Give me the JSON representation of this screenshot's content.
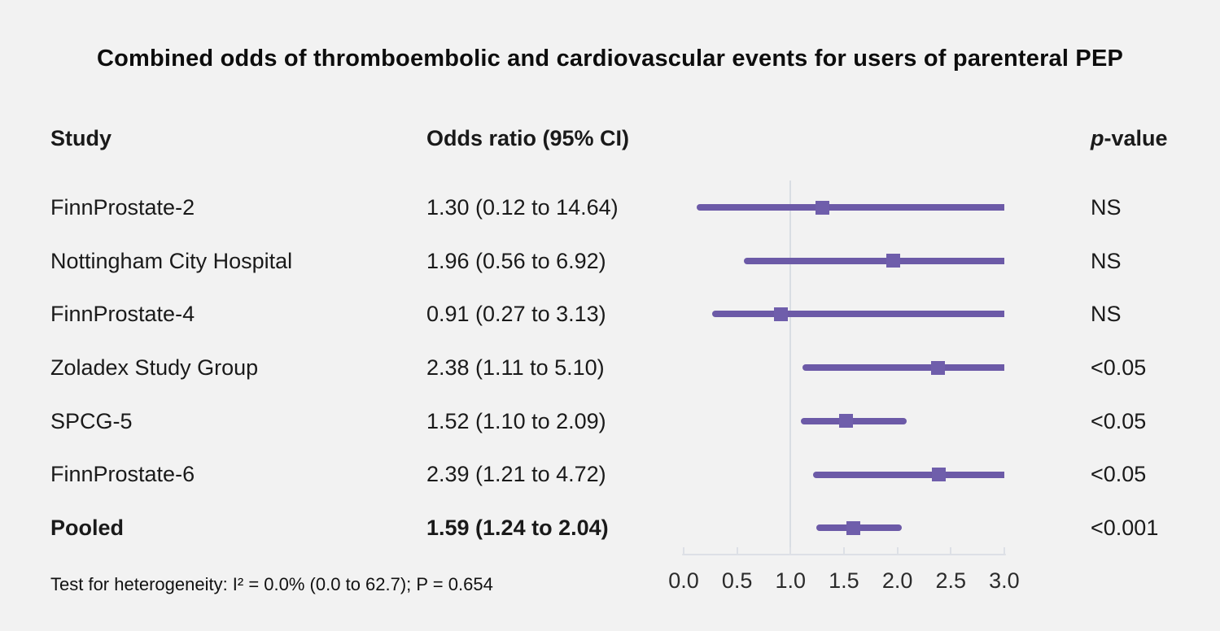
{
  "chart_data": {
    "type": "scatter",
    "variant": "forest-plot",
    "title": "Combined odds of thromboembolic and cardiovascular events for users of parenteral PEP",
    "columns": {
      "study": "Study",
      "odds_ratio": "Odds ratio (95% CI)",
      "p_header_italic": "p",
      "p_header_rest": "-value"
    },
    "rows": [
      {
        "study": "FinnProstate-2",
        "or": 1.3,
        "ci_low": 0.12,
        "ci_high": 14.64,
        "or_label": "1.30 (0.12 to 14.64)",
        "p_value": "NS",
        "pooled": false
      },
      {
        "study": "Nottingham City Hospital",
        "or": 1.96,
        "ci_low": 0.56,
        "ci_high": 6.92,
        "or_label": "1.96 (0.56 to 6.92)",
        "p_value": "NS",
        "pooled": false
      },
      {
        "study": "FinnProstate-4",
        "or": 0.91,
        "ci_low": 0.27,
        "ci_high": 3.13,
        "or_label": "0.91 (0.27 to 3.13)",
        "p_value": "NS",
        "pooled": false
      },
      {
        "study": "Zoladex Study Group",
        "or": 2.38,
        "ci_low": 1.11,
        "ci_high": 5.1,
        "or_label": "2.38 (1.11 to 5.10)",
        "p_value": "<0.05",
        "pooled": false
      },
      {
        "study": "SPCG-5",
        "or": 1.52,
        "ci_low": 1.1,
        "ci_high": 2.09,
        "or_label": "1.52 (1.10 to 2.09)",
        "p_value": "<0.05",
        "pooled": false
      },
      {
        "study": "FinnProstate-6",
        "or": 2.39,
        "ci_low": 1.21,
        "ci_high": 4.72,
        "or_label": "2.39 (1.21 to 4.72)",
        "p_value": "<0.05",
        "pooled": false
      },
      {
        "study": "Pooled",
        "or": 1.59,
        "ci_low": 1.24,
        "ci_high": 2.04,
        "or_label": "1.59 (1.24 to 2.04)",
        "p_value": "<0.001",
        "pooled": true
      }
    ],
    "x_axis": {
      "ticks": [
        "0.0",
        "0.5",
        "1.0",
        "1.5",
        "2.0",
        "2.5",
        "3.0"
      ],
      "xlim": [
        0.0,
        3.0
      ],
      "reference_line": 1.0,
      "grid": false
    },
    "footnote": "Test for heterogeneity: I² = 0.0% (0.0 to 62.7); P = 0.654",
    "legend": null,
    "colors": {
      "ci_line": "#6C5AA7",
      "marker": "#6F5EAB",
      "reference_line": "#D9DDE3",
      "axis": "#DDE0E6",
      "text": "#1a1a1a",
      "background": "#F2F2F2"
    }
  }
}
